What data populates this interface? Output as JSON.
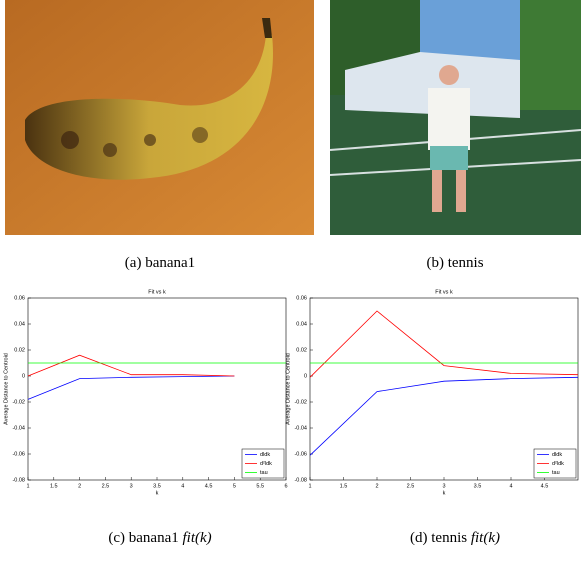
{
  "panels": [
    {
      "label": "(a)",
      "caption": "banana1"
    },
    {
      "label": "(b)",
      "caption": "tennis"
    },
    {
      "label": "(c)",
      "caption": "banana1",
      "caption_math": "fit(k)"
    },
    {
      "label": "(d)",
      "caption": "tennis",
      "caption_math": "fit(k)"
    }
  ],
  "chart_data": [
    {
      "type": "line",
      "title": "Fit vs k",
      "x_label": "k",
      "y_label": "Average Distance to Centroid",
      "x": [
        1,
        2,
        3,
        4,
        5
      ],
      "series": [
        {
          "name": "dldk",
          "color": "#0000ff",
          "values": [
            -0.018,
            -0.002,
            -0.001,
            -0.0005,
            0
          ]
        },
        {
          "name": "d²ldk",
          "color": "#ff0000",
          "values": [
            0,
            0.016,
            0.001,
            0.001,
            0
          ]
        },
        {
          "name": "tau",
          "color": "#00ff00",
          "x": [
            1,
            6
          ],
          "values": [
            0.01,
            0.01
          ]
        }
      ],
      "xlim": [
        1,
        6
      ],
      "xticks": [
        1,
        1.5,
        2,
        2.5,
        3,
        3.5,
        4,
        4.5,
        5,
        5.5,
        6
      ],
      "ylim": [
        -0.08,
        0.06
      ],
      "yticks": [
        -0.08,
        -0.06,
        -0.04,
        -0.02,
        0,
        0.02,
        0.04,
        0.06
      ],
      "legend": "lower right"
    },
    {
      "type": "line",
      "title": "Fit vs k",
      "x_label": "k",
      "y_label": "Average Distance to Centroid",
      "x": [
        1,
        2,
        3,
        4,
        5
      ],
      "series": [
        {
          "name": "dldk",
          "color": "#0000ff",
          "values": [
            -0.061,
            -0.012,
            -0.004,
            -0.002,
            -0.001
          ]
        },
        {
          "name": "d²ldk",
          "color": "#ff0000",
          "values": [
            -0.001,
            0.05,
            0.008,
            0.002,
            0.001
          ]
        },
        {
          "name": "tau",
          "color": "#00ff00",
          "x": [
            1,
            5
          ],
          "values": [
            0.01,
            0.01
          ]
        }
      ],
      "xlim": [
        1,
        5
      ],
      "xticks": [
        1,
        1.5,
        2,
        2.5,
        3,
        3.5,
        4,
        4.5
      ],
      "ylim": [
        -0.08,
        0.06
      ],
      "yticks": [
        -0.08,
        -0.06,
        -0.04,
        -0.02,
        0,
        0.02,
        0.04,
        0.06
      ],
      "legend": "lower right"
    }
  ]
}
